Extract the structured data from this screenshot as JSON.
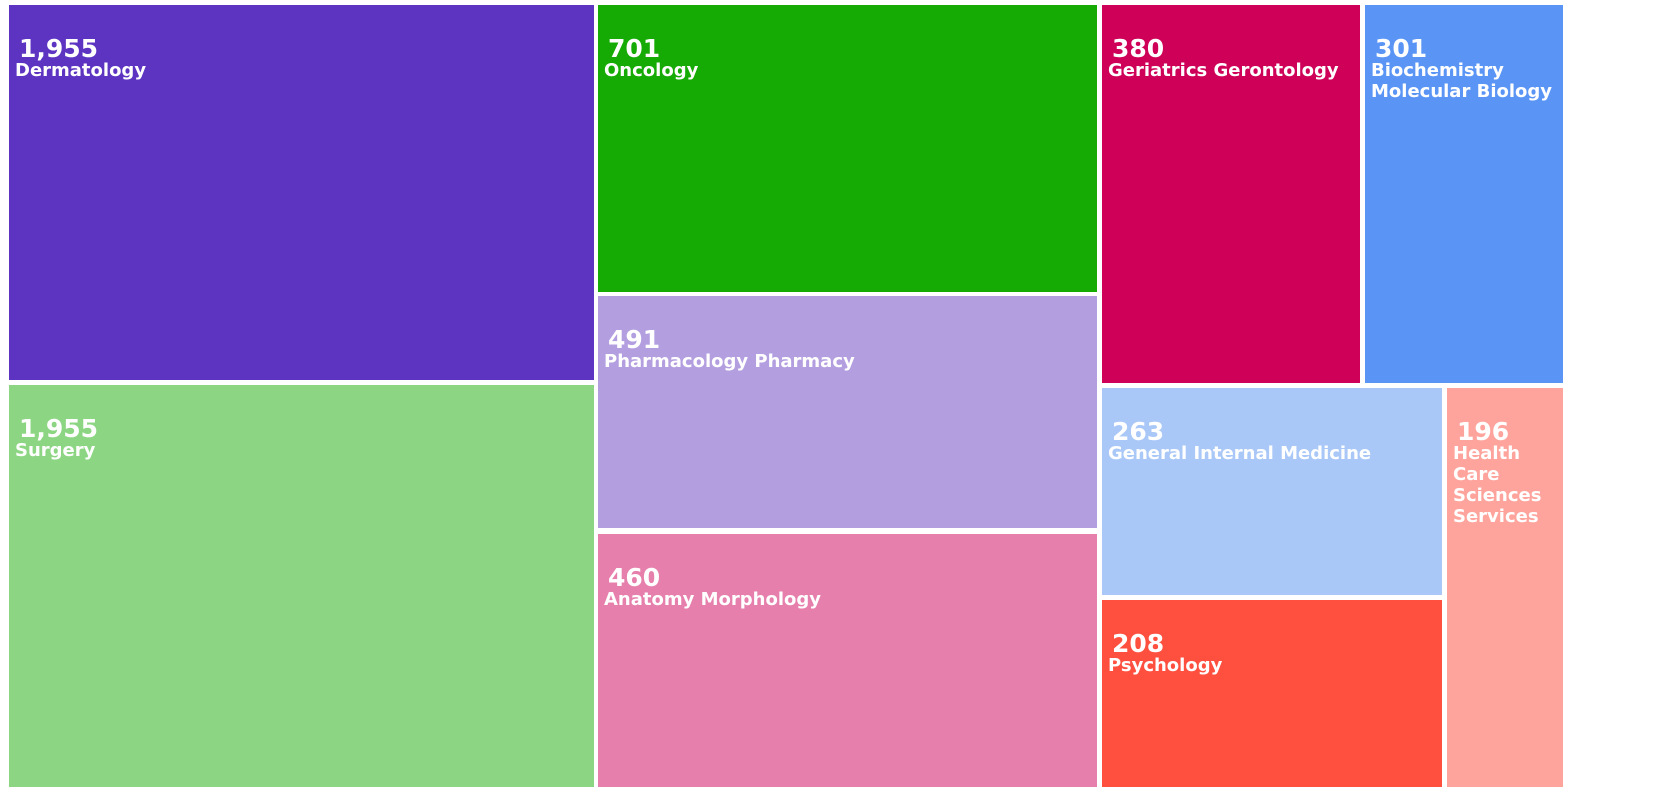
{
  "chart_data": {
    "type": "treemap",
    "title": "",
    "series": [
      {
        "name": "Dermatology",
        "value": 1955,
        "label": "1,955",
        "color": "#5d33c2"
      },
      {
        "name": "Surgery",
        "value": 1955,
        "label": "1,955",
        "color": "#8cd683"
      },
      {
        "name": "Oncology",
        "value": 701,
        "label": "701",
        "color": "#15ab04"
      },
      {
        "name": "Pharmacology Pharmacy",
        "value": 491,
        "label": "491",
        "color": "#b39fe0"
      },
      {
        "name": "Anatomy Morphology",
        "value": 460,
        "label": "460",
        "color": "#e67fab"
      },
      {
        "name": "Geriatrics Gerontology",
        "value": 380,
        "label": "380",
        "color": "#ce0058"
      },
      {
        "name": "Biochemistry Molecular Biology",
        "value": 301,
        "label": "301",
        "color": "#5a95f5"
      },
      {
        "name": "General Internal Medicine",
        "value": 263,
        "label": "263",
        "color": "#a9c8f8"
      },
      {
        "name": "Psychology",
        "value": 208,
        "label": "208",
        "color": "#ff4f3f"
      },
      {
        "name": "Health Care Sciences Services",
        "value": 196,
        "label": "196",
        "color": "#ffa49c"
      }
    ]
  }
}
